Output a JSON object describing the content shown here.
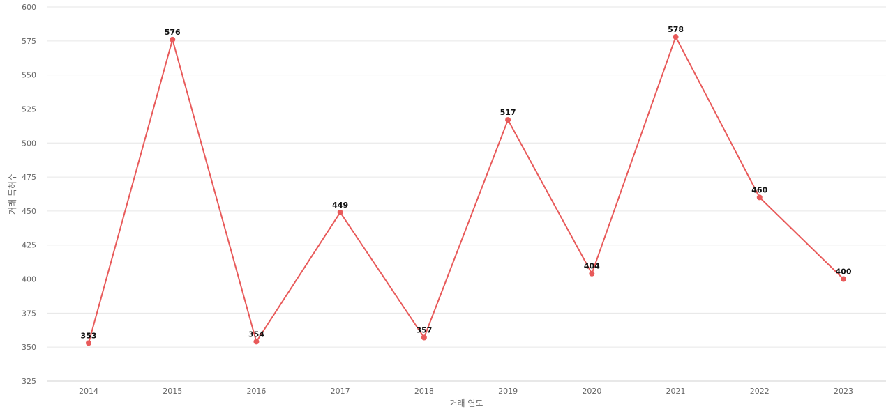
{
  "chart_data": {
    "type": "line",
    "title": "",
    "xlabel": "거래 연도",
    "ylabel": "거래 특허수",
    "categories": [
      "2014",
      "2015",
      "2016",
      "2017",
      "2018",
      "2019",
      "2020",
      "2021",
      "2022",
      "2023"
    ],
    "series": [
      {
        "values": [
          353,
          576,
          354,
          449,
          357,
          517,
          404,
          578,
          460,
          400
        ]
      }
    ],
    "data_labels": [
      "353",
      "576",
      "354",
      "449",
      "357",
      "517",
      "404",
      "578",
      "460",
      "400"
    ],
    "yticks": [
      "325",
      "350",
      "375",
      "400",
      "425",
      "450",
      "475",
      "500",
      "525",
      "550",
      "575",
      "600"
    ],
    "ylim": [
      325,
      600
    ],
    "grid": true,
    "legend": "none",
    "colors": {
      "line": "#e85a5a",
      "point": "#e85a5a"
    }
  }
}
